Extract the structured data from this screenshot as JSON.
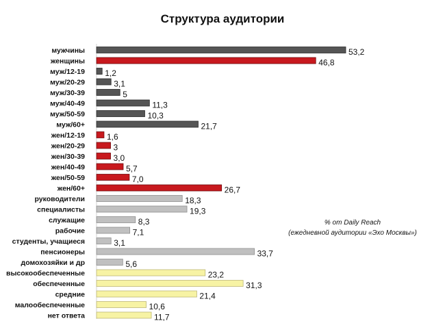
{
  "chart_data": {
    "type": "bar",
    "orientation": "horizontal",
    "title": "Структура аудитории",
    "note": [
      "% от Daily Reach",
      "(ежедневной аудитории «Эхо Москвы»)"
    ],
    "categories": [
      "мужчины",
      "женщины",
      "муж/12-19",
      "муж/20-29",
      "муж/30-39",
      "муж/40-49",
      "муж/50-59",
      "муж/60+",
      "жен/12-19",
      "жен/20-29",
      "жен/30-39",
      "жен/40-49",
      "жен/50-59",
      "жен/60+",
      "руководители",
      "специалисты",
      "служащие",
      "рабочие",
      "студенты, учащиеся",
      "пенсионеры",
      "домохозяйки и др",
      "высокообеспеченные",
      "обеспеченные",
      "средние",
      "малообеспеченные",
      "нет ответа"
    ],
    "values": [
      53.2,
      46.8,
      1.2,
      3.1,
      5,
      11.3,
      10.3,
      21.7,
      1.6,
      3,
      3.0,
      5.7,
      7.0,
      26.7,
      18.3,
      19.3,
      8.3,
      7.1,
      3.1,
      33.7,
      5.6,
      23.2,
      31.3,
      21.4,
      10.6,
      11.7
    ],
    "value_labels": [
      "53,2",
      "46,8",
      "1,2",
      "3,1",
      "5",
      "11,3",
      "10,3",
      "21,7",
      "1,6",
      "3",
      "3,0",
      "5,7",
      "7,0",
      "26,7",
      "18,3",
      "19,3",
      "8,3",
      "7,1",
      "3,1",
      "33,7",
      "5,6",
      "23,2",
      "31,3",
      "21,4",
      "10,6",
      "11,7"
    ],
    "groups": [
      "men",
      "women",
      "men",
      "men",
      "men",
      "men",
      "men",
      "men",
      "women",
      "women",
      "women",
      "women",
      "women",
      "women",
      "occupation",
      "occupation",
      "occupation",
      "occupation",
      "occupation",
      "occupation",
      "occupation",
      "income",
      "income",
      "income",
      "income",
      "income"
    ],
    "colors": {
      "men": "#555555",
      "women": "#c8191e",
      "occupation": "#c0c0c0",
      "income": "#f7f3a4",
      "men_stroke": "#2a2a2a",
      "women_stroke": "#6e0c0f",
      "occupation_stroke": "#8e8e8e",
      "income_stroke": "#bdb777"
    },
    "xlim": [
      0,
      53.2
    ],
    "xlabel": "",
    "ylabel": ""
  }
}
